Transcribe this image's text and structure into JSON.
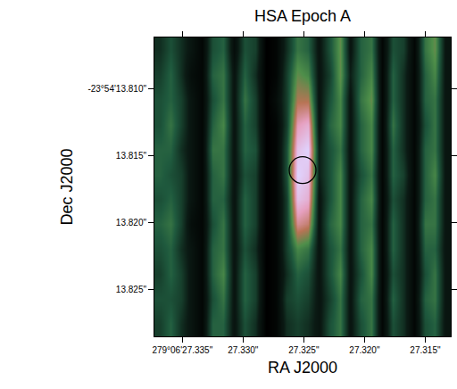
{
  "chart_data": {
    "type": "heatmap",
    "title": "HSA Epoch A",
    "x_label": "RA J2000",
    "y_label": "Dec J2000",
    "xlim": [
      27.3373,
      27.3129
    ],
    "ylim": [
      13.8285,
      13.8062
    ],
    "xticks": [
      {
        "value": 27.335,
        "label": "279°06'27.335\""
      },
      {
        "value": 27.33,
        "label": "27.330\""
      },
      {
        "value": 27.325,
        "label": "27.325\""
      },
      {
        "value": 27.32,
        "label": "27.320\""
      },
      {
        "value": 27.315,
        "label": "27.315\""
      }
    ],
    "yticks": [
      {
        "value": 13.81,
        "label": "-23°54'13.810\""
      },
      {
        "value": 13.815,
        "label": "13.815\""
      },
      {
        "value": 13.82,
        "label": "13.820\""
      },
      {
        "value": 13.825,
        "label": "13.825\""
      }
    ],
    "x": [
      27.33686,
      27.33599,
      27.33512,
      27.33425,
      27.33337,
      27.3325,
      27.33163,
      27.33076,
      27.32989,
      27.32901,
      27.32814,
      27.32727,
      27.3264,
      27.32553,
      27.32465,
      27.32378,
      27.32291,
      27.32204,
      27.32117,
      27.32029,
      27.31942,
      27.31855,
      27.31768,
      27.31681,
      27.31593,
      27.31506,
      27.31419,
      27.31332
    ],
    "y": [
      13.80713,
      13.80899,
      13.81085,
      13.81271,
      13.81457,
      13.81643,
      13.81828,
      13.82014,
      13.822,
      13.82386,
      13.82572,
      13.82758
    ],
    "z": [
      [
        0.3,
        0.4,
        0.3,
        0.2,
        0.1,
        0.4,
        0.45,
        0.15,
        0.4,
        0.35,
        0.05,
        0.1,
        0.3,
        0.5,
        0.45,
        0.2,
        0.4,
        0.6,
        0.2,
        0.45,
        0.5,
        0.1,
        0.4,
        0.35,
        0.1,
        0.5,
        0.6,
        0.2
      ],
      [
        0.35,
        0.45,
        0.3,
        0.15,
        0.1,
        0.45,
        0.5,
        0.2,
        0.45,
        0.3,
        0.05,
        0.1,
        0.35,
        0.6,
        0.55,
        0.2,
        0.35,
        0.6,
        0.25,
        0.45,
        0.55,
        0.1,
        0.45,
        0.3,
        0.1,
        0.45,
        0.55,
        0.2
      ],
      [
        0.4,
        0.45,
        0.35,
        0.2,
        0.1,
        0.4,
        0.5,
        0.2,
        0.5,
        0.35,
        0.05,
        0.15,
        0.35,
        0.7,
        0.7,
        0.2,
        0.4,
        0.55,
        0.2,
        0.5,
        0.6,
        0.1,
        0.45,
        0.3,
        0.1,
        0.45,
        0.5,
        0.2
      ],
      [
        0.4,
        0.5,
        0.35,
        0.2,
        0.1,
        0.45,
        0.55,
        0.2,
        0.45,
        0.35,
        0.05,
        0.1,
        0.35,
        0.85,
        0.9,
        0.2,
        0.45,
        0.55,
        0.2,
        0.45,
        0.55,
        0.1,
        0.5,
        0.3,
        0.1,
        0.4,
        0.5,
        0.2
      ],
      [
        0.45,
        0.45,
        0.3,
        0.2,
        0.1,
        0.5,
        0.5,
        0.2,
        0.45,
        0.4,
        0.05,
        0.1,
        0.4,
        0.95,
        1.0,
        0.25,
        0.4,
        0.5,
        0.2,
        0.45,
        0.55,
        0.1,
        0.45,
        0.3,
        0.1,
        0.45,
        0.5,
        0.2
      ],
      [
        0.45,
        0.4,
        0.35,
        0.2,
        0.1,
        0.45,
        0.5,
        0.2,
        0.4,
        0.35,
        0.05,
        0.1,
        0.4,
        1.0,
        0.95,
        0.25,
        0.4,
        0.55,
        0.2,
        0.4,
        0.5,
        0.1,
        0.45,
        0.35,
        0.1,
        0.45,
        0.55,
        0.2
      ],
      [
        0.4,
        0.45,
        0.35,
        0.2,
        0.1,
        0.45,
        0.45,
        0.2,
        0.45,
        0.35,
        0.05,
        0.1,
        0.35,
        0.95,
        0.9,
        0.2,
        0.4,
        0.55,
        0.2,
        0.45,
        0.55,
        0.1,
        0.4,
        0.3,
        0.1,
        0.45,
        0.5,
        0.2
      ],
      [
        0.45,
        0.5,
        0.35,
        0.15,
        0.1,
        0.4,
        0.5,
        0.2,
        0.45,
        0.35,
        0.05,
        0.1,
        0.35,
        0.8,
        0.75,
        0.2,
        0.45,
        0.55,
        0.2,
        0.45,
        0.5,
        0.1,
        0.45,
        0.3,
        0.1,
        0.5,
        0.5,
        0.2
      ],
      [
        0.4,
        0.45,
        0.3,
        0.2,
        0.1,
        0.45,
        0.5,
        0.2,
        0.4,
        0.3,
        0.05,
        0.1,
        0.35,
        0.55,
        0.5,
        0.2,
        0.4,
        0.5,
        0.2,
        0.45,
        0.55,
        0.1,
        0.45,
        0.3,
        0.1,
        0.45,
        0.45,
        0.2
      ],
      [
        0.35,
        0.45,
        0.35,
        0.2,
        0.1,
        0.45,
        0.55,
        0.2,
        0.45,
        0.35,
        0.05,
        0.1,
        0.3,
        0.45,
        0.4,
        0.2,
        0.4,
        0.55,
        0.2,
        0.4,
        0.55,
        0.1,
        0.4,
        0.3,
        0.1,
        0.4,
        0.5,
        0.2
      ],
      [
        0.4,
        0.4,
        0.35,
        0.2,
        0.1,
        0.4,
        0.5,
        0.2,
        0.45,
        0.35,
        0.05,
        0.1,
        0.35,
        0.4,
        0.35,
        0.2,
        0.35,
        0.5,
        0.2,
        0.45,
        0.5,
        0.1,
        0.45,
        0.3,
        0.1,
        0.45,
        0.5,
        0.2
      ],
      [
        0.35,
        0.45,
        0.3,
        0.2,
        0.1,
        0.45,
        0.45,
        0.2,
        0.4,
        0.3,
        0.05,
        0.1,
        0.3,
        0.35,
        0.3,
        0.2,
        0.4,
        0.5,
        0.2,
        0.4,
        0.5,
        0.1,
        0.4,
        0.3,
        0.1,
        0.4,
        0.45,
        0.2
      ]
    ],
    "circle": {
      "x": 27.3251,
      "y": 13.8161
    }
  }
}
